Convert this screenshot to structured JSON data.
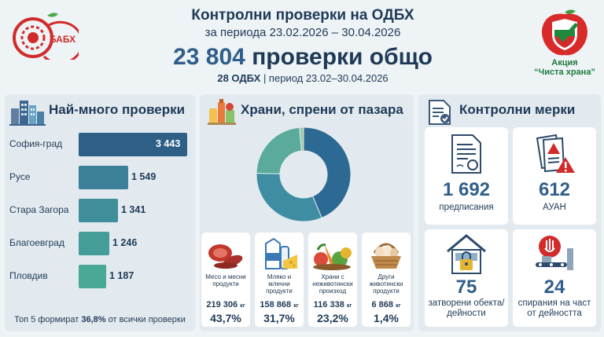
{
  "header": {
    "title": "Контролни проверки на ОДБХ",
    "period": "за периода 23.02.2026 – 30.04.2026",
    "total_value": "23 804",
    "total_label": "проверки общо",
    "note_strong": "28 ОДБХ",
    "note_rest": "| период 23.02–30.04.2026"
  },
  "logos": {
    "left_text": "БАБХ",
    "right_line1": "Акция",
    "right_line2": "“Чиста храна”"
  },
  "panels": {
    "inspections_title": "Най-много проверки",
    "food_title": "Храни, спрени от пазара",
    "measures_title": "Контролни мерки"
  },
  "footnote": {
    "pre": "Топ 5 формират ",
    "strong": "36,8%",
    "post": " от всички проверки"
  },
  "chart_data": [
    {
      "type": "bar",
      "orientation": "horizontal",
      "title": "Най-много проверки",
      "categories": [
        "София-град",
        "Русе",
        "Стара Загора",
        "Благоевград",
        "Пловдив"
      ],
      "values": [
        3443,
        1549,
        1341,
        1246,
        1187
      ],
      "value_labels": [
        "3 443",
        "1 549",
        "1 341",
        "1 246",
        "1 187"
      ],
      "colors": [
        "#2d5f87",
        "#3b7f98",
        "#3f8e99",
        "#449d98",
        "#49a996"
      ]
    },
    {
      "type": "pie",
      "title": "Храни, спрени от пазара",
      "categories": [
        "Месо и месни продукти",
        "Мляко и млечни продукти",
        "Храни с неживотински произход",
        "Други животински продукти"
      ],
      "values": [
        43.7,
        31.7,
        23.2,
        1.4
      ],
      "value_labels": [
        "43,7%",
        "31,7%",
        "23,2%",
        "1,4%"
      ],
      "kg_values": [
        "219 306",
        "158 868",
        "116 338",
        "6 868"
      ],
      "kg_unit": "кг",
      "colors": [
        "#2d6a93",
        "#3f8da2",
        "#5aab9b",
        "#9ccaa6"
      ]
    }
  ],
  "measures": [
    {
      "value": "1 692",
      "label": "предписания",
      "icon": "document-seal-icon"
    },
    {
      "value": "612",
      "label": "АУАН",
      "icon": "warning-documents-icon"
    },
    {
      "value": "75",
      "label": "затворени обекта/дейности",
      "icon": "locked-building-icon"
    },
    {
      "value": "24",
      "label": "спирания на част от дейността",
      "icon": "stopped-conveyor-icon"
    }
  ]
}
